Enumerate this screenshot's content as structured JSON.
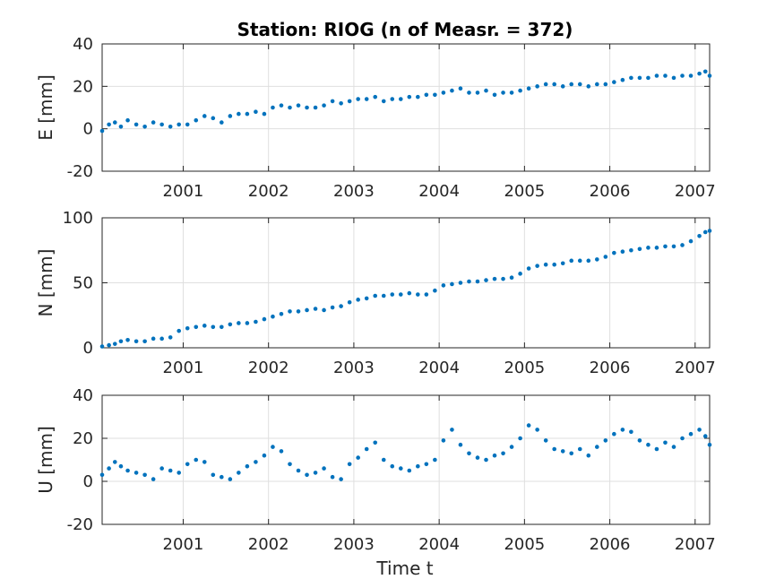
{
  "chart_data": {
    "type": "scatter",
    "title": "Station: RIOG (n of Measr. = 372)",
    "xlabel": "Time t",
    "grid": true,
    "marker_color": "#0072BD",
    "xlim": [
      2000.05,
      2007.17
    ],
    "xticks": [
      2001,
      2002,
      2003,
      2004,
      2005,
      2006,
      2007
    ],
    "panels": [
      {
        "ylabel": "E [mm]",
        "ylim": [
          -20,
          40
        ],
        "yticks": [
          -20,
          0,
          20,
          40
        ],
        "x": [
          2000.05,
          2000.13,
          2000.2,
          2000.27,
          2000.35,
          2000.45,
          2000.55,
          2000.65,
          2000.75,
          2000.85,
          2000.95,
          2001.05,
          2001.15,
          2001.25,
          2001.35,
          2001.45,
          2001.55,
          2001.65,
          2001.75,
          2001.85,
          2001.95,
          2002.05,
          2002.15,
          2002.25,
          2002.35,
          2002.45,
          2002.55,
          2002.65,
          2002.75,
          2002.85,
          2002.95,
          2003.05,
          2003.15,
          2003.25,
          2003.35,
          2003.45,
          2003.55,
          2003.65,
          2003.75,
          2003.85,
          2003.95,
          2004.05,
          2004.15,
          2004.25,
          2004.35,
          2004.45,
          2004.55,
          2004.65,
          2004.75,
          2004.85,
          2004.95,
          2005.05,
          2005.15,
          2005.25,
          2005.35,
          2005.45,
          2005.55,
          2005.65,
          2005.75,
          2005.85,
          2005.95,
          2006.05,
          2006.15,
          2006.25,
          2006.35,
          2006.45,
          2006.55,
          2006.65,
          2006.75,
          2006.85,
          2006.95,
          2007.05,
          2007.12,
          2007.17
        ],
        "y": [
          -1,
          2,
          3,
          1,
          4,
          2,
          1,
          3,
          2,
          1,
          2,
          2,
          4,
          6,
          5,
          3,
          6,
          7,
          7,
          8,
          7,
          10,
          11,
          10,
          11,
          10,
          10,
          11,
          13,
          12,
          13,
          14,
          14,
          15,
          13,
          14,
          14,
          15,
          15,
          16,
          16,
          17,
          18,
          19,
          17,
          17,
          18,
          16,
          17,
          17,
          18,
          19,
          20,
          21,
          21,
          20,
          21,
          21,
          20,
          21,
          21,
          22,
          23,
          24,
          24,
          24,
          25,
          25,
          24,
          25,
          25,
          26,
          27,
          25
        ]
      },
      {
        "ylabel": "N [mm]",
        "ylim": [
          0,
          100
        ],
        "yticks": [
          0,
          50,
          100
        ],
        "x": [
          2000.05,
          2000.13,
          2000.2,
          2000.27,
          2000.35,
          2000.45,
          2000.55,
          2000.65,
          2000.75,
          2000.85,
          2000.95,
          2001.05,
          2001.15,
          2001.25,
          2001.35,
          2001.45,
          2001.55,
          2001.65,
          2001.75,
          2001.85,
          2001.95,
          2002.05,
          2002.15,
          2002.25,
          2002.35,
          2002.45,
          2002.55,
          2002.65,
          2002.75,
          2002.85,
          2002.95,
          2003.05,
          2003.15,
          2003.25,
          2003.35,
          2003.45,
          2003.55,
          2003.65,
          2003.75,
          2003.85,
          2003.95,
          2004.05,
          2004.15,
          2004.25,
          2004.35,
          2004.45,
          2004.55,
          2004.65,
          2004.75,
          2004.85,
          2004.95,
          2005.05,
          2005.15,
          2005.25,
          2005.35,
          2005.45,
          2005.55,
          2005.65,
          2005.75,
          2005.85,
          2005.95,
          2006.05,
          2006.15,
          2006.25,
          2006.35,
          2006.45,
          2006.55,
          2006.65,
          2006.75,
          2006.85,
          2006.95,
          2007.05,
          2007.12,
          2007.17
        ],
        "y": [
          1,
          2,
          3,
          5,
          6,
          5,
          5,
          7,
          7,
          8,
          13,
          15,
          16,
          17,
          16,
          16,
          18,
          19,
          19,
          20,
          22,
          24,
          26,
          28,
          28,
          29,
          30,
          29,
          31,
          32,
          35,
          37,
          38,
          40,
          40,
          41,
          41,
          42,
          41,
          41,
          44,
          48,
          49,
          50,
          51,
          51,
          52,
          53,
          53,
          54,
          57,
          61,
          63,
          64,
          64,
          65,
          67,
          67,
          67,
          68,
          70,
          73,
          74,
          75,
          76,
          77,
          77,
          78,
          78,
          79,
          82,
          86,
          89,
          90
        ]
      },
      {
        "ylabel": "U [mm]",
        "ylim": [
          -20,
          40
        ],
        "yticks": [
          -20,
          0,
          20,
          40
        ],
        "x": [
          2000.05,
          2000.13,
          2000.2,
          2000.27,
          2000.35,
          2000.45,
          2000.55,
          2000.65,
          2000.75,
          2000.85,
          2000.95,
          2001.05,
          2001.15,
          2001.25,
          2001.35,
          2001.45,
          2001.55,
          2001.65,
          2001.75,
          2001.85,
          2001.95,
          2002.05,
          2002.15,
          2002.25,
          2002.35,
          2002.45,
          2002.55,
          2002.65,
          2002.75,
          2002.85,
          2002.95,
          2003.05,
          2003.15,
          2003.25,
          2003.35,
          2003.45,
          2003.55,
          2003.65,
          2003.75,
          2003.85,
          2003.95,
          2004.05,
          2004.15,
          2004.25,
          2004.35,
          2004.45,
          2004.55,
          2004.65,
          2004.75,
          2004.85,
          2004.95,
          2005.05,
          2005.15,
          2005.25,
          2005.35,
          2005.45,
          2005.55,
          2005.65,
          2005.75,
          2005.85,
          2005.95,
          2006.05,
          2006.15,
          2006.25,
          2006.35,
          2006.45,
          2006.55,
          2006.65,
          2006.75,
          2006.85,
          2006.95,
          2007.05,
          2007.12,
          2007.17
        ],
        "y": [
          3,
          6,
          9,
          7,
          5,
          4,
          3,
          1,
          6,
          5,
          4,
          8,
          10,
          9,
          3,
          2,
          1,
          4,
          7,
          9,
          12,
          16,
          14,
          8,
          5,
          3,
          4,
          6,
          2,
          1,
          8,
          11,
          15,
          18,
          10,
          7,
          6,
          5,
          7,
          8,
          10,
          19,
          24,
          17,
          13,
          11,
          10,
          12,
          13,
          16,
          20,
          26,
          24,
          19,
          15,
          14,
          13,
          15,
          12,
          16,
          19,
          22,
          24,
          23,
          19,
          17,
          15,
          18,
          16,
          20,
          22,
          24,
          21,
          17
        ]
      }
    ]
  }
}
